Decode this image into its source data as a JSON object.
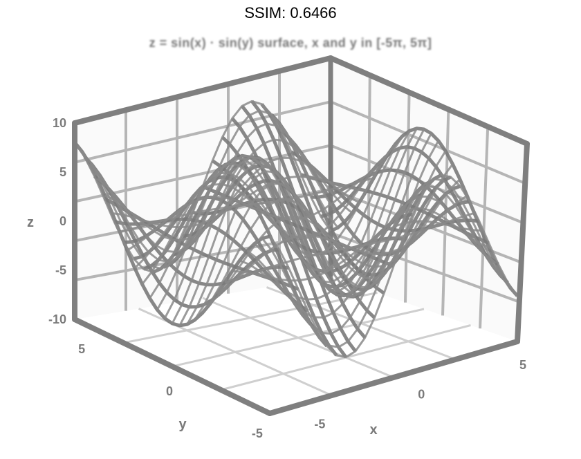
{
  "header": {
    "title": "SSIM: 0.6466"
  },
  "chart_data": {
    "type": "surface",
    "title": "z = sin(x) · sin(y) surface, x and y in [-5π, 5π]",
    "xlabel": "x",
    "ylabel": "y",
    "zlabel": "z",
    "zlim": [
      -10,
      10
    ],
    "z_ticks": [
      "10",
      "5",
      "0",
      "-5",
      "-10"
    ],
    "y_ticks": [
      "5",
      "0",
      "-5"
    ],
    "x_ticks": [
      "-5",
      "0",
      "5"
    ],
    "grid": true,
    "colors": {
      "line": "#7a7a7a",
      "grid": "#b5b5b5",
      "axis": "#7f7f7f"
    }
  }
}
